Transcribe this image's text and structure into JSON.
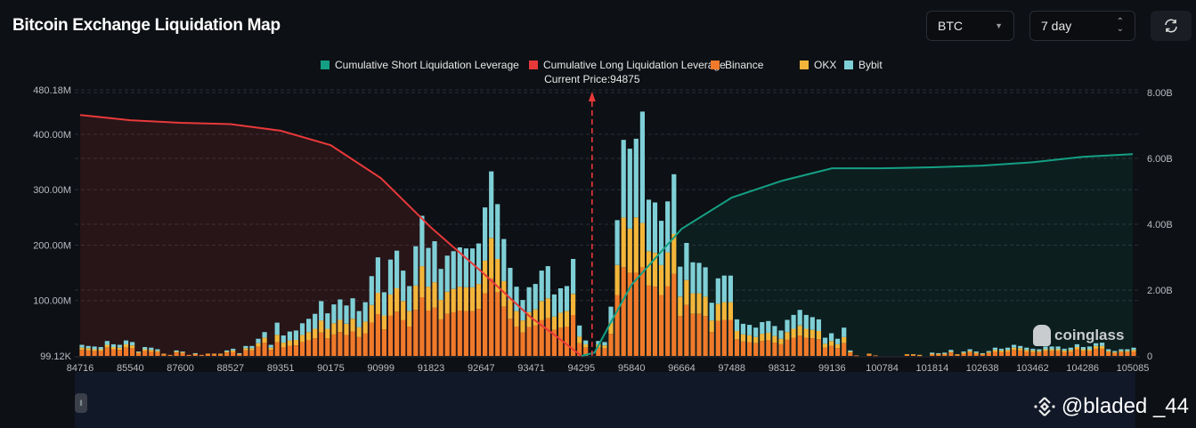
{
  "header": {
    "title": "Bitcoin Exchange Liquidation Map",
    "coin_select": "BTC",
    "range_select": "7 day",
    "refresh_icon": "refresh-icon"
  },
  "watermark": {
    "brand": "coinglass",
    "credit": "@bladed _44"
  },
  "chart_data": {
    "type": "bar",
    "legend": [
      {
        "name": "Cumulative Short Liquidation Leverage",
        "color": "#14a085"
      },
      {
        "name": "Cumulative Long Liquidation Leverage",
        "color": "#e8393a"
      },
      {
        "name": "Binance",
        "color": "#f07a2a"
      },
      {
        "name": "OKX",
        "color": "#f3b63a"
      },
      {
        "name": "Bybit",
        "color": "#7fcfd6"
      }
    ],
    "legend_position": "top",
    "current_price_label": "Current Price:94875",
    "current_price": 94875,
    "x_tick_labels": [
      "84716",
      "85540",
      "87600",
      "88527",
      "89351",
      "90175",
      "90999",
      "91823",
      "92647",
      "93471",
      "94295",
      "95840",
      "96664",
      "97488",
      "98312",
      "99136",
      "100784",
      "101814",
      "102638",
      "103462",
      "104286",
      "105085"
    ],
    "y_left_ticks": [
      {
        "label": "99.12K",
        "value": 0.09912
      },
      {
        "label": "100.00M",
        "value": 100
      },
      {
        "label": "200.00M",
        "value": 200
      },
      {
        "label": "300.00M",
        "value": 300
      },
      {
        "label": "400.00M",
        "value": 400
      },
      {
        "label": "480.18M",
        "value": 480.18
      }
    ],
    "y_left_unit": "M USD",
    "y_right_ticks": [
      {
        "label": "0",
        "value": 0
      },
      {
        "label": "2.00B",
        "value": 2
      },
      {
        "label": "4.00B",
        "value": 4
      },
      {
        "label": "6.00B",
        "value": 6
      },
      {
        "label": "8.00B",
        "value": 8
      }
    ],
    "y_right_unit": "B USD",
    "ylim_left": [
      0,
      480.18
    ],
    "ylim_right": [
      0,
      8
    ],
    "grid": true,
    "series": [
      {
        "name": "Binance",
        "stack": true,
        "values": [
          11,
          10,
          9,
          9,
          15,
          12,
          11,
          15,
          14,
          5,
          9,
          8,
          7,
          3,
          2,
          6,
          5,
          2,
          3,
          2,
          3,
          3,
          3,
          6,
          7,
          3,
          10,
          10,
          17,
          24,
          11,
          25,
          16,
          18,
          19,
          25,
          28,
          32,
          42,
          32,
          39,
          43,
          38,
          44,
          34,
          41,
          60,
          75,
          48,
          73,
          80,
          65,
          53,
          83,
          106,
          82,
          87,
          66,
          76,
          79,
          82,
          81,
          81,
          85,
          113,
          140,
          115,
          89,
          67,
          53,
          42,
          52,
          55,
          65,
          68,
          47,
          51,
          53,
          74,
          23,
          15,
          0,
          15,
          14,
          40,
          110,
          160,
          150,
          150,
          160,
          127,
          125,
          110,
          126,
          148,
          72,
          92,
          76,
          76,
          72,
          43,
          63,
          65,
          65,
          30,
          26,
          25,
          23,
          27,
          28,
          24,
          21,
          29,
          33,
          37,
          33,
          32,
          30,
          15,
          18,
          14,
          23,
          6,
          1,
          0,
          3,
          1,
          0,
          0,
          0,
          0,
          2,
          2,
          1,
          0,
          3,
          3,
          3,
          6,
          2,
          4,
          7,
          4,
          3,
          5,
          8,
          7,
          8,
          11,
          10,
          8,
          7,
          7,
          9,
          9,
          9,
          7,
          8,
          12,
          9,
          9,
          13,
          13,
          7,
          5,
          7,
          7,
          8
        ]
      },
      {
        "name": "OKX",
        "stack": true,
        "values": [
          4,
          4,
          3,
          3,
          5,
          4,
          4,
          6,
          5,
          2,
          3,
          3,
          2,
          1,
          0,
          2,
          2,
          0,
          1,
          0,
          1,
          1,
          1,
          2,
          3,
          1,
          4,
          4,
          6,
          9,
          4,
          13,
          8,
          10,
          10,
          13,
          15,
          17,
          22,
          17,
          20,
          22,
          20,
          23,
          18,
          21,
          32,
          39,
          25,
          38,
          42,
          34,
          28,
          44,
          56,
          43,
          46,
          35,
          40,
          42,
          43,
          43,
          43,
          45,
          59,
          73,
          60,
          46,
          35,
          28,
          22,
          27,
          29,
          34,
          36,
          24,
          27,
          28,
          38,
          12,
          6,
          0,
          6,
          5,
          20,
          54,
          90,
          80,
          100,
          80,
          62,
          61,
          54,
          61,
          72,
          35,
          45,
          37,
          37,
          35,
          21,
          31,
          32,
          32,
          15,
          13,
          12,
          11,
          13,
          14,
          12,
          10,
          14,
          16,
          18,
          16,
          15,
          15,
          7,
          9,
          7,
          11,
          2,
          0,
          0,
          1,
          0,
          0,
          0,
          0,
          0,
          1,
          1,
          1,
          0,
          1,
          1,
          1,
          2,
          1,
          2,
          2,
          2,
          1,
          2,
          3,
          3,
          3,
          4,
          4,
          3,
          3,
          2,
          3,
          3,
          3,
          3,
          3,
          4,
          3,
          3,
          5,
          5,
          2,
          2,
          2,
          2,
          3
        ]
      },
      {
        "name": "Bybit",
        "stack": true,
        "values": [
          5,
          4,
          5,
          4,
          7,
          5,
          5,
          7,
          6,
          1,
          4,
          4,
          3,
          0,
          0,
          2,
          1,
          0,
          1,
          0,
          0,
          0,
          0,
          2,
          3,
          1,
          4,
          4,
          8,
          10,
          5,
          22,
          13,
          16,
          17,
          21,
          24,
          27,
          35,
          28,
          34,
          37,
          33,
          37,
          29,
          35,
          52,
          64,
          42,
          63,
          68,
          55,
          45,
          71,
          91,
          70,
          74,
          56,
          65,
          68,
          71,
          70,
          70,
          73,
          96,
          120,
          99,
          76,
          57,
          44,
          37,
          45,
          46,
          55,
          58,
          40,
          44,
          45,
          63,
          20,
          7,
          0,
          6,
          6,
          29,
          81,
          140,
          144,
          142,
          201,
          93,
          91,
          80,
          92,
          108,
          54,
          67,
          56,
          55,
          53,
          32,
          46,
          48,
          48,
          21,
          19,
          19,
          17,
          21,
          21,
          18,
          15,
          22,
          25,
          28,
          25,
          23,
          21,
          11,
          14,
          10,
          17,
          2,
          0,
          0,
          0,
          0,
          0,
          0,
          0,
          0,
          0,
          0,
          0,
          0,
          2,
          1,
          2,
          3,
          0,
          2,
          3,
          2,
          1,
          2,
          4,
          3,
          4,
          5,
          4,
          4,
          3,
          3,
          5,
          5,
          5,
          3,
          4,
          5,
          4,
          5,
          5,
          6,
          3,
          2,
          3,
          3,
          4
        ]
      },
      {
        "name": "Cumulative Long Liquidation Leverage",
        "type": "line",
        "axis": "right",
        "points": [
          [
            84716,
            7.32
          ],
          [
            85540,
            7.16
          ],
          [
            87600,
            7.08
          ],
          [
            88527,
            7.04
          ],
          [
            89351,
            6.84
          ],
          [
            90175,
            6.4
          ],
          [
            90999,
            5.4
          ],
          [
            91823,
            3.9
          ],
          [
            92647,
            2.57
          ],
          [
            93471,
            1.16
          ],
          [
            93880,
            0.6
          ],
          [
            94295,
            0
          ]
        ]
      },
      {
        "name": "Cumulative Short Liquidation Leverage",
        "type": "line",
        "axis": "right",
        "points": [
          [
            94295,
            0
          ],
          [
            94700,
            0.1
          ],
          [
            95300,
            1.2
          ],
          [
            95840,
            2.16
          ],
          [
            96664,
            3.86
          ],
          [
            97488,
            4.81
          ],
          [
            98312,
            5.32
          ],
          [
            99136,
            5.7
          ],
          [
            100784,
            5.7
          ],
          [
            101814,
            5.73
          ],
          [
            102638,
            5.78
          ],
          [
            103462,
            5.88
          ],
          [
            104286,
            6.05
          ],
          [
            105085,
            6.13
          ]
        ]
      }
    ]
  }
}
